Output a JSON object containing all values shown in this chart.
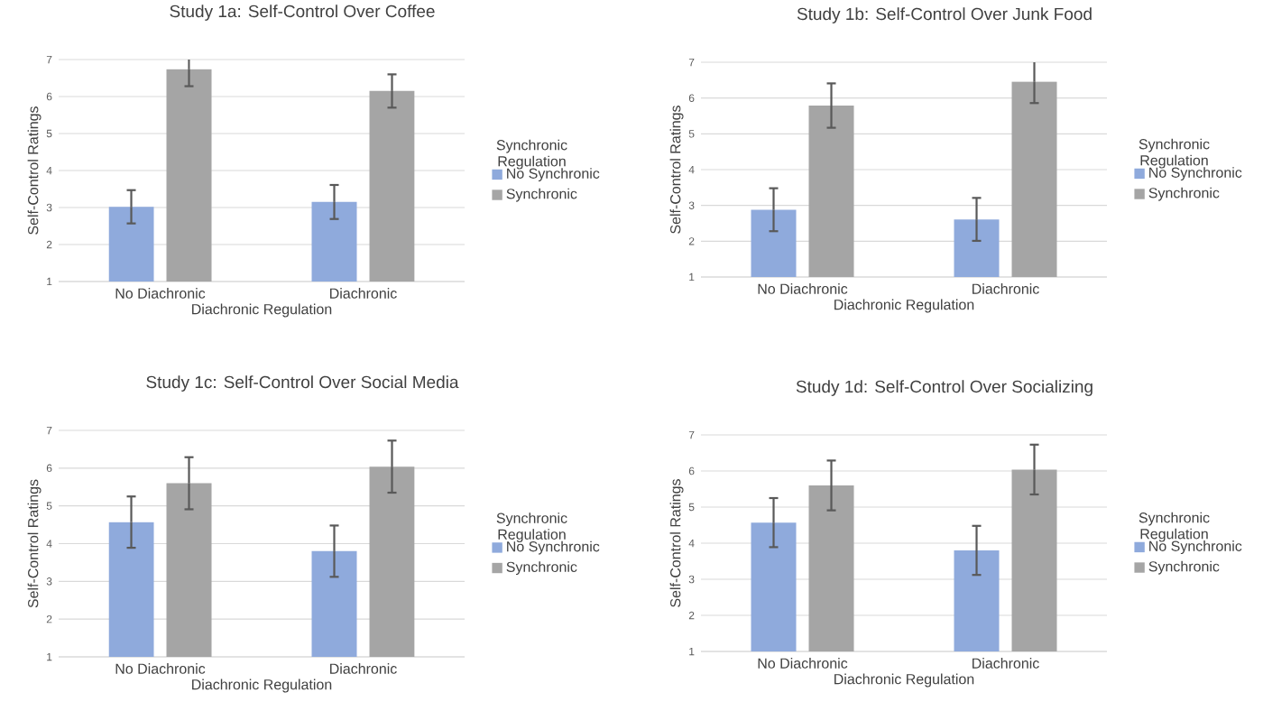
{
  "chart_data": [
    {
      "type": "bar",
      "title": "Study 1a: Self-Control Over Coffee",
      "xlabel": "Diachronic Regulation",
      "ylabel": "Self-Control Ratings",
      "legend_title": "Synchronic Regulation",
      "categories": [
        "No Diachronic",
        "Diachronic"
      ],
      "ylim": [
        1,
        7
      ],
      "yticks": [
        1,
        2,
        3,
        4,
        5,
        6,
        7
      ],
      "grid": "y",
      "legend": "right",
      "series": [
        {
          "name": "No Synchronic",
          "color": "#8faadc",
          "values": [
            3.02,
            3.15
          ],
          "errors": [
            0.45,
            0.46
          ]
        },
        {
          "name": "Synchronic",
          "color": "#a5a5a5",
          "values": [
            6.74,
            6.15
          ],
          "errors": [
            0.46,
            0.45
          ]
        }
      ]
    },
    {
      "type": "bar",
      "title": "Study 1b: Self-Control Over Junk Food",
      "xlabel": "Diachronic Regulation",
      "ylabel": "Self-Control Ratings",
      "legend_title": "Synchronic Regulation",
      "categories": [
        "No Diachronic",
        "Diachronic"
      ],
      "ylim": [
        1,
        7
      ],
      "yticks": [
        1,
        2,
        3,
        4,
        5,
        6,
        7
      ],
      "grid": "y",
      "legend": "right",
      "series": [
        {
          "name": "No Synchronic",
          "color": "#8faadc",
          "values": [
            2.88,
            2.61
          ],
          "errors": [
            0.6,
            0.6
          ]
        },
        {
          "name": "Synchronic",
          "color": "#a5a5a5",
          "values": [
            5.79,
            6.46
          ],
          "errors": [
            0.62,
            0.6
          ]
        }
      ]
    },
    {
      "type": "bar",
      "title": "Study 1c: Self-Control Over Social Media",
      "xlabel": "Diachronic Regulation",
      "ylabel": "Self-Control Ratings",
      "legend_title": "Synchronic Regulation",
      "categories": [
        "No Diachronic",
        "Diachronic"
      ],
      "ylim": [
        1,
        7
      ],
      "yticks": [
        1,
        2,
        3,
        4,
        5,
        6,
        7
      ],
      "grid": "y",
      "legend": "right",
      "series": [
        {
          "name": "No Synchronic",
          "color": "#8faadc",
          "values": [
            4.57,
            3.8
          ],
          "errors": [
            0.68,
            0.68
          ]
        },
        {
          "name": "Synchronic",
          "color": "#a5a5a5",
          "values": [
            5.6,
            6.04
          ],
          "errors": [
            0.69,
            0.69
          ]
        }
      ]
    },
    {
      "type": "bar",
      "title": "Study 1d: Self-Control Over Socializing",
      "xlabel": "Diachronic Regulation",
      "ylabel": "Self-Control Ratings",
      "legend_title": "Synchronic Regulation",
      "categories": [
        "No Diachronic",
        "Diachronic"
      ],
      "ylim": [
        1,
        7
      ],
      "yticks": [
        1,
        2,
        3,
        4,
        5,
        6,
        7
      ],
      "grid": "y",
      "legend": "right",
      "series": [
        {
          "name": "No Synchronic",
          "color": "#8faadc",
          "values": [
            4.57,
            3.8
          ],
          "errors": [
            0.68,
            0.68
          ]
        },
        {
          "name": "Synchronic",
          "color": "#a5a5a5",
          "values": [
            5.6,
            6.04
          ],
          "errors": [
            0.69,
            0.69
          ]
        }
      ]
    }
  ]
}
